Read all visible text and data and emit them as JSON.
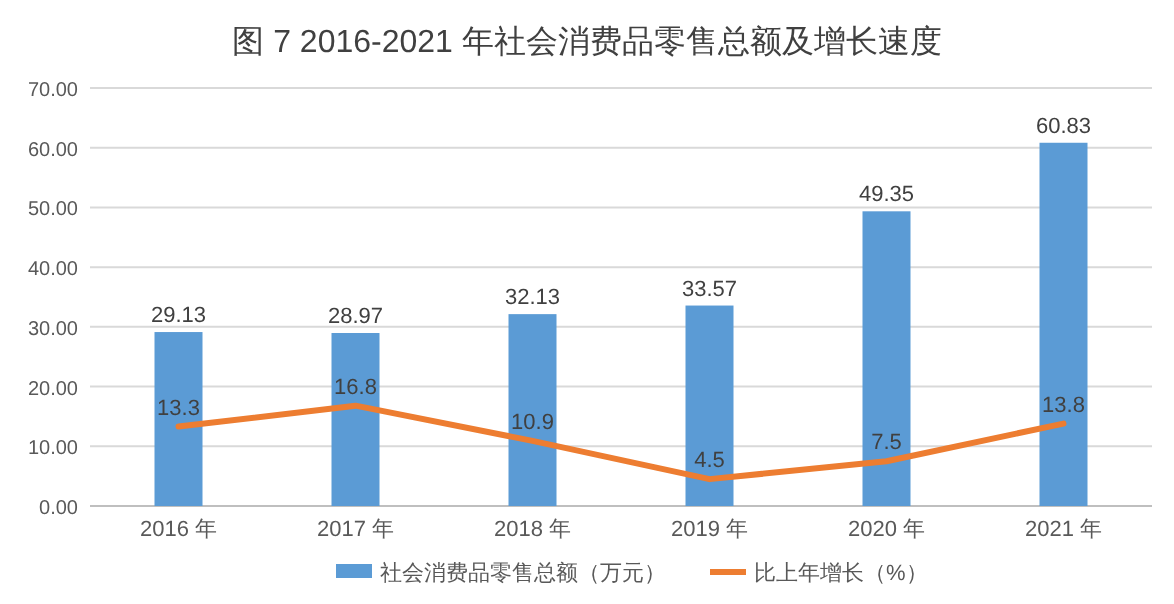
{
  "chart_data": {
    "type": "bar",
    "title": "图 7   2016-2021 年社会消费品零售总额及增长速度",
    "categories": [
      "2016 年",
      "2017 年",
      "2018 年",
      "2019 年",
      "2020 年",
      "2021 年"
    ],
    "series": [
      {
        "name": "社会消费品零售总额（万元）",
        "color": "#5b9bd5",
        "values": [
          29.13,
          28.97,
          32.13,
          33.57,
          49.35,
          60.83
        ]
      },
      {
        "name": "比上年增长（%）",
        "type": "line",
        "color": "#ed7d31",
        "values": [
          13.3,
          16.8,
          10.9,
          4.5,
          7.5,
          13.8
        ]
      }
    ],
    "ylim": [
      0,
      70
    ],
    "yticks": [
      {
        "value": 0,
        "label": "0.00"
      },
      {
        "value": 10,
        "label": "10.00"
      },
      {
        "value": 20,
        "label": "20.00"
      },
      {
        "value": 30,
        "label": "30.00"
      },
      {
        "value": 40,
        "label": "40.00"
      },
      {
        "value": 50,
        "label": "50.00"
      },
      {
        "value": 60,
        "label": "60.00"
      },
      {
        "value": 70,
        "label": "70.00"
      }
    ],
    "grid": "y",
    "legend": "bottom",
    "data_labels": true,
    "marker": "none"
  }
}
